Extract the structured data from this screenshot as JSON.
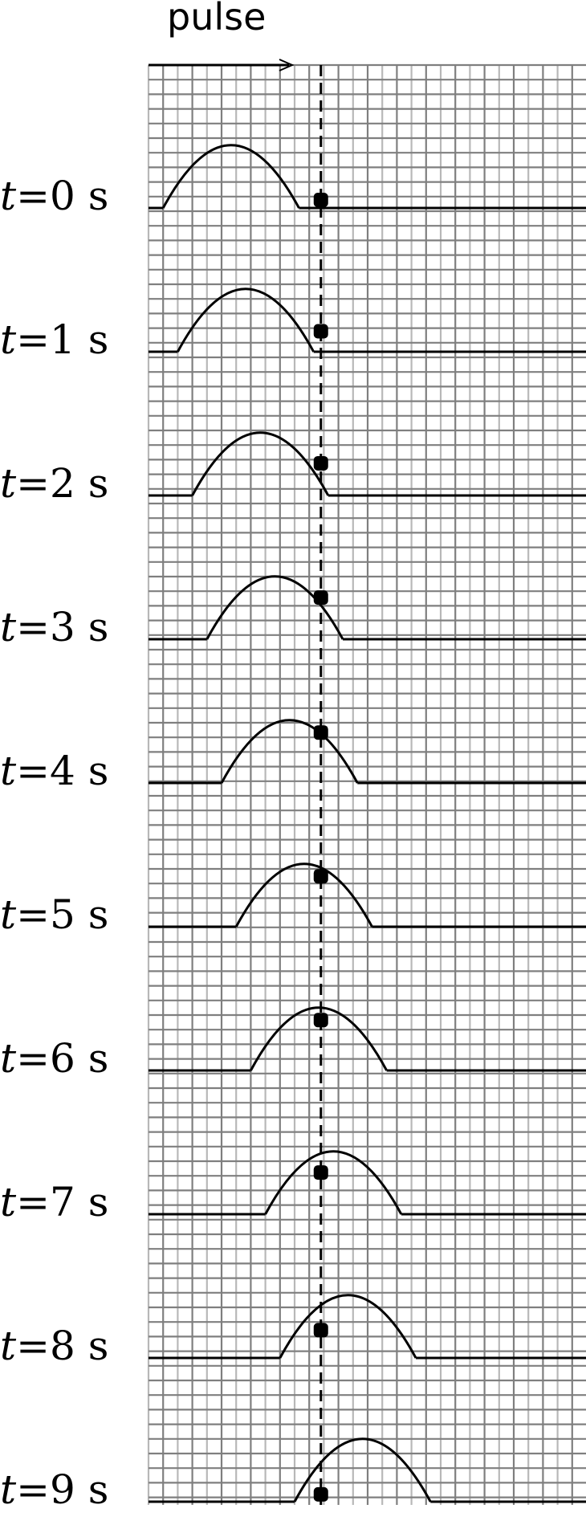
{
  "title": "pulse",
  "time_unit": "s",
  "time_var": "t",
  "snapshots": [
    {
      "t": "0",
      "pulse_left": 1,
      "pulse_right": 10.3,
      "marker_height": 0.55
    },
    {
      "t": "1",
      "pulse_left": 2,
      "pulse_right": 11.3,
      "marker_height": 1.4
    },
    {
      "t": "2",
      "pulse_left": 3,
      "pulse_right": 12.3,
      "marker_height": 2.2
    },
    {
      "t": "3",
      "pulse_left": 4,
      "pulse_right": 13.3,
      "marker_height": 2.85
    },
    {
      "t": "4",
      "pulse_left": 5,
      "pulse_right": 14.3,
      "marker_height": 3.45
    },
    {
      "t": "5",
      "pulse_left": 6,
      "pulse_right": 15.3,
      "marker_height": 3.45
    },
    {
      "t": "6",
      "pulse_left": 7,
      "pulse_right": 16.3,
      "marker_height": 3.45
    },
    {
      "t": "7",
      "pulse_left": 8,
      "pulse_right": 17.3,
      "marker_height": 2.85
    },
    {
      "t": "8",
      "pulse_left": 9,
      "pulse_right": 18.3,
      "marker_height": 1.9
    },
    {
      "t": "9",
      "pulse_left": 10,
      "pulse_right": 19.3,
      "marker_height": 0.5
    }
  ],
  "pulse_height": 4.3,
  "observation_point_x": 11.8,
  "grid_columns": 30,
  "grid_rows_per_snapshot": 10,
  "colors": {
    "grid": "#7f7f7f",
    "grid_major": "#b8b8b8",
    "curve": "#000000",
    "axis": "#000000"
  }
}
